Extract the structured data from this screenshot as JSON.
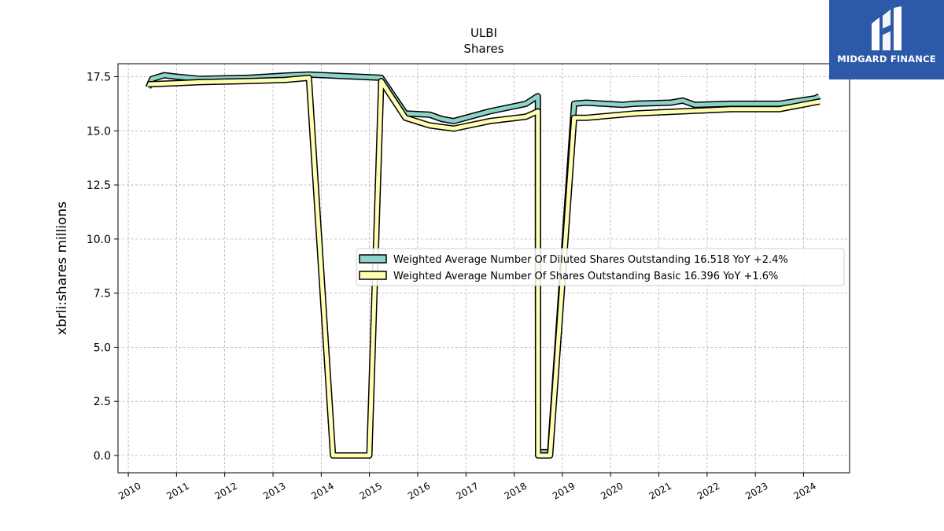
{
  "brand": {
    "name": "MIDGARD FINANCE",
    "logo_icon": "midgard-finance-logo",
    "background_color": "#2d5aa8"
  },
  "chart_data": {
    "type": "line",
    "title": "ULBI",
    "subtitle": "Shares",
    "xlabel": "",
    "ylabel": "xbrli:shares millions",
    "xlim": [
      "2009-10-15",
      "2024-12-15"
    ],
    "ylim": [
      -0.8,
      18.1
    ],
    "yticks": [
      0.0,
      2.5,
      5.0,
      7.5,
      10.0,
      12.5,
      15.0,
      17.5
    ],
    "ytick_labels": [
      "0.0",
      "2.5",
      "5.0",
      "7.5",
      "10.0",
      "12.5",
      "15.0",
      "17.5"
    ],
    "xticks": [
      "2010-01-01",
      "2011-01-01",
      "2012-01-01",
      "2013-01-01",
      "2014-01-01",
      "2015-01-01",
      "2016-01-01",
      "2017-01-01",
      "2018-01-01",
      "2019-01-01",
      "2020-01-01",
      "2021-01-01",
      "2022-01-01",
      "2023-01-01",
      "2024-01-01"
    ],
    "xtick_labels": [
      "2010",
      "2011",
      "2012",
      "2013",
      "2014",
      "2015",
      "2016",
      "2017",
      "2018",
      "2019",
      "2020",
      "2021",
      "2022",
      "2023",
      "2024"
    ],
    "grid": true,
    "legend_position": "center-right",
    "series": [
      {
        "name": "Weighted Average Number Of Diluted Shares Outstanding",
        "legend_label": "Weighted Average Number Of Diluted Shares Outstanding  16.518 YoY +2.4%",
        "color": "#8dd3c7",
        "points": [
          [
            "2010-06-01",
            17.0
          ],
          [
            "2010-06-30",
            17.4
          ],
          [
            "2010-09-30",
            17.57
          ],
          [
            "2010-12-31",
            17.5
          ],
          [
            "2011-06-30",
            17.4
          ],
          [
            "2012-06-30",
            17.45
          ],
          [
            "2013-03-31",
            17.55
          ],
          [
            "2013-09-30",
            17.6
          ],
          [
            "2014-03-31",
            17.55
          ],
          [
            "2015-03-31",
            17.45
          ],
          [
            "2015-09-30",
            15.8
          ],
          [
            "2016-03-31",
            15.75
          ],
          [
            "2016-06-30",
            15.55
          ],
          [
            "2016-09-30",
            15.45
          ],
          [
            "2017-06-30",
            15.9
          ],
          [
            "2018-03-31",
            16.25
          ],
          [
            "2018-06-15",
            16.55
          ],
          [
            "2018-06-30",
            16.6
          ],
          [
            "2018-07-01",
            0.15
          ],
          [
            "2018-09-30",
            0.15
          ],
          [
            "2019-03-31",
            16.25
          ],
          [
            "2019-06-30",
            16.3
          ],
          [
            "2020-03-31",
            16.2
          ],
          [
            "2020-06-30",
            16.25
          ],
          [
            "2021-03-31",
            16.3
          ],
          [
            "2021-06-30",
            16.4
          ],
          [
            "2021-09-30",
            16.2
          ],
          [
            "2022-06-30",
            16.25
          ],
          [
            "2023-06-30",
            16.25
          ],
          [
            "2024-03-31",
            16.5
          ],
          [
            "2024-04-30",
            16.6
          ]
        ]
      },
      {
        "name": "Weighted Average Number Of Shares Outstanding Basic",
        "legend_label": "Weighted Average Number Of Shares Outstanding Basic  16.396 YoY +1.6%",
        "color": "#ffffb3",
        "points": [
          [
            "2010-06-01",
            17.15
          ],
          [
            "2010-12-31",
            17.2
          ],
          [
            "2011-06-30",
            17.25
          ],
          [
            "2012-06-30",
            17.3
          ],
          [
            "2013-03-31",
            17.35
          ],
          [
            "2013-09-30",
            17.45
          ],
          [
            "2014-03-31",
            0.0
          ],
          [
            "2014-06-30",
            0.0
          ],
          [
            "2014-12-31",
            0.0
          ],
          [
            "2015-03-31",
            17.3
          ],
          [
            "2015-09-30",
            15.6
          ],
          [
            "2016-03-31",
            15.25
          ],
          [
            "2016-09-30",
            15.1
          ],
          [
            "2017-06-30",
            15.45
          ],
          [
            "2018-03-31",
            15.65
          ],
          [
            "2018-06-30",
            15.9
          ],
          [
            "2018-07-01",
            0.0
          ],
          [
            "2018-09-30",
            0.0
          ],
          [
            "2019-03-31",
            15.6
          ],
          [
            "2019-06-30",
            15.6
          ],
          [
            "2020-06-30",
            15.8
          ],
          [
            "2021-06-30",
            15.9
          ],
          [
            "2022-06-30",
            16.0
          ],
          [
            "2023-06-30",
            16.0
          ],
          [
            "2024-04-30",
            16.35
          ]
        ]
      }
    ]
  }
}
